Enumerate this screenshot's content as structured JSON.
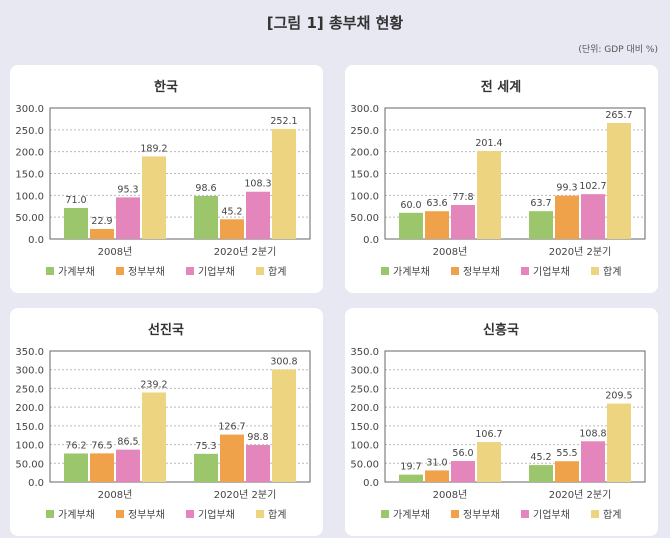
{
  "title": "[그림 1] 총부채 현황",
  "unit": "(단위: GDP 대비 %)",
  "chart_data": [
    {
      "type": "bar",
      "title": "한국",
      "categories": [
        "2008년",
        "2020년 2분기"
      ],
      "ylim": [
        0,
        300
      ],
      "yticks": [
        "0.0",
        "50.00",
        "100.0",
        "150.0",
        "200.0",
        "250.0",
        "300.0"
      ],
      "series": [
        {
          "name": "가계부채",
          "values": [
            71.0,
            98.6
          ]
        },
        {
          "name": "정부부채",
          "values": [
            22.9,
            45.2
          ]
        },
        {
          "name": "기업부채",
          "values": [
            95.3,
            108.3
          ]
        },
        {
          "name": "합계",
          "values": [
            189.2,
            252.1
          ]
        }
      ],
      "legend": "bottom",
      "grid": true
    },
    {
      "type": "bar",
      "title": "전 세계",
      "categories": [
        "2008년",
        "2020년 2분기"
      ],
      "ylim": [
        0,
        300
      ],
      "yticks": [
        "0.0",
        "50.00",
        "100.0",
        "150.0",
        "200.0",
        "250.0",
        "300.0"
      ],
      "series": [
        {
          "name": "가계부채",
          "values": [
            60.0,
            63.7
          ]
        },
        {
          "name": "정부부채",
          "values": [
            63.6,
            99.3
          ]
        },
        {
          "name": "기업부채",
          "values": [
            77.8,
            102.7
          ]
        },
        {
          "name": "합계",
          "values": [
            201.4,
            265.7
          ]
        }
      ],
      "legend": "bottom",
      "grid": true
    },
    {
      "type": "bar",
      "title": "선진국",
      "categories": [
        "2008년",
        "2020년 2분기"
      ],
      "ylim": [
        0,
        350
      ],
      "yticks": [
        "0.0",
        "50.00",
        "100.0",
        "150.0",
        "200.0",
        "250.0",
        "300.0",
        "350.0"
      ],
      "series": [
        {
          "name": "가계부채",
          "values": [
            76.2,
            75.3
          ]
        },
        {
          "name": "정부부채",
          "values": [
            76.5,
            126.7
          ]
        },
        {
          "name": "기업부채",
          "values": [
            86.5,
            98.8
          ]
        },
        {
          "name": "합계",
          "values": [
            239.2,
            300.8
          ]
        }
      ],
      "legend": "bottom",
      "grid": true
    },
    {
      "type": "bar",
      "title": "신흥국",
      "categories": [
        "2008년",
        "2020년 2분기"
      ],
      "ylim": [
        0,
        350
      ],
      "yticks": [
        "0.0",
        "50.00",
        "100.0",
        "150.0",
        "200.0",
        "250.0",
        "300.0",
        "350.0"
      ],
      "series": [
        {
          "name": "가계부채",
          "values": [
            19.7,
            45.2
          ]
        },
        {
          "name": "정부부채",
          "values": [
            31.0,
            55.5
          ]
        },
        {
          "name": "기업부채",
          "values": [
            56.0,
            108.8
          ]
        },
        {
          "name": "합계",
          "values": [
            106.7,
            209.5
          ]
        }
      ],
      "legend": "bottom",
      "grid": true
    }
  ],
  "colors": [
    "#9cc66c",
    "#f0a24a",
    "#e486bc",
    "#ecd480"
  ]
}
